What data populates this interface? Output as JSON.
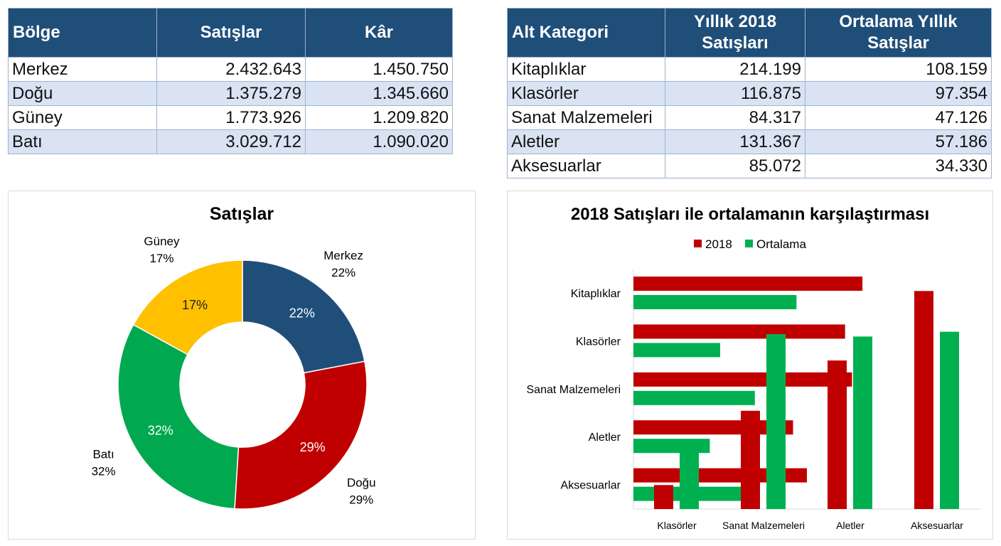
{
  "region_table": {
    "headers": [
      "Bölge",
      "Satışlar",
      "Kâr"
    ],
    "rows": [
      [
        "Merkez",
        "2.432.643",
        "1.450.750"
      ],
      [
        "Doğu",
        "1.375.279",
        "1.345.660"
      ],
      [
        "Güney",
        "1.773.926",
        "1.209.820"
      ],
      [
        "Batı",
        "3.029.712",
        "1.090.020"
      ]
    ]
  },
  "category_table": {
    "headers": [
      "Alt Kategori",
      "Yıllık 2018 Satışları",
      "Ortalama Yıllık Satışlar"
    ],
    "rows": [
      [
        "Kitaplıklar",
        "214.199",
        "108.159"
      ],
      [
        "Klasörler",
        "116.875",
        "97.354"
      ],
      [
        "Sanat Malzemeleri",
        "84.317",
        "47.126"
      ],
      [
        "Aletler",
        "131.367",
        "57.186"
      ],
      [
        "Aksesuarlar",
        "85.072",
        "34.330"
      ]
    ]
  },
  "chart_data": [
    {
      "type": "pie",
      "variant": "donut",
      "title": "Satışlar",
      "categories": [
        "Merkez",
        "Doğu",
        "Batı",
        "Güney"
      ],
      "values": [
        22,
        29,
        32,
        17
      ],
      "labels": [
        "22%",
        "29%",
        "32%",
        "17%"
      ],
      "colors": [
        "#1f4e79",
        "#c00000",
        "#00a84f",
        "#ffc000"
      ],
      "label_colors": [
        "#ffffff",
        "#ffffff",
        "#ffffff",
        "#222222"
      ]
    },
    {
      "type": "bar",
      "title": "2018 Satışları ile ortalamanın karşılaştırması",
      "legend": [
        "2018",
        "Ortalama"
      ],
      "legend_position": "top",
      "colors": {
        "2018": "#c00000",
        "Ortalama": "#00b050"
      },
      "grid": false,
      "horizontal": {
        "categories": [
          "Kitaplıklar",
          "Klasörler",
          "Sanat Malzemeleri",
          "Aletler",
          "Aksesuarlar"
        ],
        "series": [
          {
            "name": "2018",
            "values": [
              66,
              61,
              63,
              46,
              50
            ]
          },
          {
            "name": "Ortalama",
            "values": [
              47,
              25,
              35,
              22,
              31
            ]
          }
        ],
        "xlim": [
          0,
          100
        ]
      },
      "vertical": {
        "categories": [
          "Klasörler",
          "Sanat Malzemeleri",
          "Aletler",
          "Aksesuarlar"
        ],
        "series": [
          {
            "name": "2018",
            "values": [
              10,
              41,
              62,
              91
            ]
          },
          {
            "name": "Ortalama",
            "values": [
              24,
              73,
              72,
              74
            ]
          }
        ],
        "ylim": [
          0,
          100
        ]
      }
    }
  ]
}
